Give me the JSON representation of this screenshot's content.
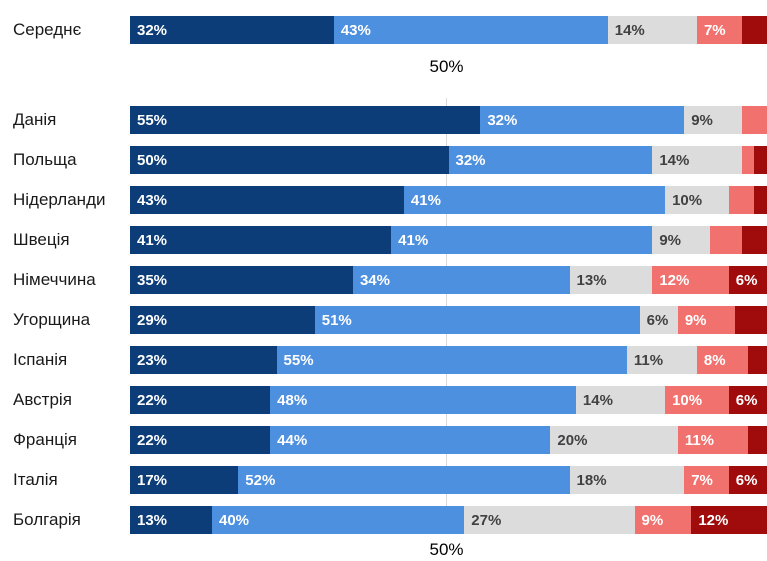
{
  "chart_data": {
    "type": "bar",
    "stacked": true,
    "orientation": "horizontal",
    "axis": {
      "top_label": "50%",
      "bottom_label": "50%",
      "tick_value": 50,
      "xlim": [
        0,
        100
      ],
      "gridline_at": 50
    },
    "label_min_value": 6,
    "colors": {
      "navy": "#0c3d78",
      "blue": "#4e90e0",
      "gray": "#dcdcdc",
      "salmon": "#f1716e",
      "darkred": "#a00c0c",
      "gray_label_text": "#414141",
      "light_label_text": "#ffffff",
      "category_text": "#1a1a1a",
      "gridline": "#d9d9d9"
    },
    "average_row": {
      "category": "Середнє",
      "segments": [
        {
          "value": 32,
          "label": "32%",
          "color": "navy"
        },
        {
          "value": 43,
          "label": "43%",
          "color": "blue"
        },
        {
          "value": 14,
          "label": "14%",
          "color": "gray"
        },
        {
          "value": 7,
          "label": "7%",
          "color": "salmon"
        },
        {
          "value": 4,
          "label": "",
          "color": "darkred"
        }
      ]
    },
    "rows": [
      {
        "category": "Данія",
        "segments": [
          {
            "value": 55,
            "label": "55%",
            "color": "navy"
          },
          {
            "value": 32,
            "label": "32%",
            "color": "blue"
          },
          {
            "value": 9,
            "label": "9%",
            "color": "gray"
          },
          {
            "value": 4,
            "label": "",
            "color": "salmon"
          },
          {
            "value": 0,
            "label": "",
            "color": "darkred"
          }
        ]
      },
      {
        "category": "Польща",
        "segments": [
          {
            "value": 50,
            "label": "50%",
            "color": "navy"
          },
          {
            "value": 32,
            "label": "32%",
            "color": "blue"
          },
          {
            "value": 14,
            "label": "14%",
            "color": "gray"
          },
          {
            "value": 2,
            "label": "",
            "color": "salmon"
          },
          {
            "value": 2,
            "label": "",
            "color": "darkred"
          }
        ]
      },
      {
        "category": "Нідерланди",
        "segments": [
          {
            "value": 43,
            "label": "43%",
            "color": "navy"
          },
          {
            "value": 41,
            "label": "41%",
            "color": "blue"
          },
          {
            "value": 10,
            "label": "10%",
            "color": "gray"
          },
          {
            "value": 4,
            "label": "",
            "color": "salmon"
          },
          {
            "value": 2,
            "label": "",
            "color": "darkred"
          }
        ]
      },
      {
        "category": "Швеція",
        "segments": [
          {
            "value": 41,
            "label": "41%",
            "color": "navy"
          },
          {
            "value": 41,
            "label": "41%",
            "color": "blue"
          },
          {
            "value": 9,
            "label": "9%",
            "color": "gray"
          },
          {
            "value": 5,
            "label": "",
            "color": "salmon"
          },
          {
            "value": 4,
            "label": "",
            "color": "darkred"
          }
        ]
      },
      {
        "category": "Німеччина",
        "segments": [
          {
            "value": 35,
            "label": "35%",
            "color": "navy"
          },
          {
            "value": 34,
            "label": "34%",
            "color": "blue"
          },
          {
            "value": 13,
            "label": "13%",
            "color": "gray"
          },
          {
            "value": 12,
            "label": "12%",
            "color": "salmon"
          },
          {
            "value": 6,
            "label": "6%",
            "color": "darkred"
          }
        ]
      },
      {
        "category": "Угорщина",
        "segments": [
          {
            "value": 29,
            "label": "29%",
            "color": "navy"
          },
          {
            "value": 51,
            "label": "51%",
            "color": "blue"
          },
          {
            "value": 6,
            "label": "6%",
            "color": "gray"
          },
          {
            "value": 9,
            "label": "9%",
            "color": "salmon"
          },
          {
            "value": 5,
            "label": "",
            "color": "darkred"
          }
        ]
      },
      {
        "category": "Іспанія",
        "segments": [
          {
            "value": 23,
            "label": "23%",
            "color": "navy"
          },
          {
            "value": 55,
            "label": "55%",
            "color": "blue"
          },
          {
            "value": 11,
            "label": "11%",
            "color": "gray"
          },
          {
            "value": 8,
            "label": "8%",
            "color": "salmon"
          },
          {
            "value": 3,
            "label": "",
            "color": "darkred"
          }
        ]
      },
      {
        "category": "Австрія",
        "segments": [
          {
            "value": 22,
            "label": "22%",
            "color": "navy"
          },
          {
            "value": 48,
            "label": "48%",
            "color": "blue"
          },
          {
            "value": 14,
            "label": "14%",
            "color": "gray"
          },
          {
            "value": 10,
            "label": "10%",
            "color": "salmon"
          },
          {
            "value": 6,
            "label": "6%",
            "color": "darkred"
          }
        ]
      },
      {
        "category": "Франція",
        "segments": [
          {
            "value": 22,
            "label": "22%",
            "color": "navy"
          },
          {
            "value": 44,
            "label": "44%",
            "color": "blue"
          },
          {
            "value": 20,
            "label": "20%",
            "color": "gray"
          },
          {
            "value": 11,
            "label": "11%",
            "color": "salmon"
          },
          {
            "value": 3,
            "label": "",
            "color": "darkred"
          }
        ]
      },
      {
        "category": "Італія",
        "segments": [
          {
            "value": 17,
            "label": "17%",
            "color": "navy"
          },
          {
            "value": 52,
            "label": "52%",
            "color": "blue"
          },
          {
            "value": 18,
            "label": "18%",
            "color": "gray"
          },
          {
            "value": 7,
            "label": "7%",
            "color": "salmon"
          },
          {
            "value": 6,
            "label": "6%",
            "color": "darkred"
          }
        ]
      },
      {
        "category": "Болгарія",
        "segments": [
          {
            "value": 13,
            "label": "13%",
            "color": "navy"
          },
          {
            "value": 40,
            "label": "40%",
            "color": "blue"
          },
          {
            "value": 27,
            "label": "27%",
            "color": "gray"
          },
          {
            "value": 9,
            "label": "9%",
            "color": "salmon"
          },
          {
            "value": 12,
            "label": "12%",
            "color": "darkred"
          }
        ]
      }
    ]
  }
}
